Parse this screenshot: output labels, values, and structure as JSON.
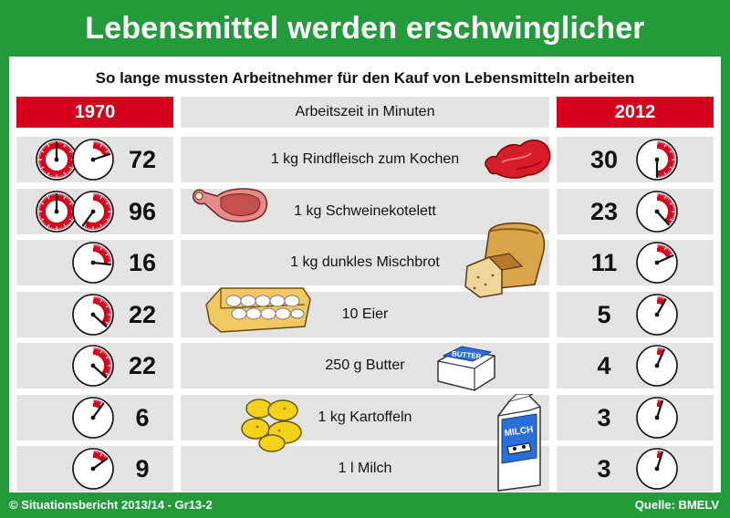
{
  "chart_data": {
    "type": "table",
    "title": "Lebensmittel werden erschwinglicher",
    "subtitle": "So lange mussten Arbeitnehmer für den Kauf von Lebensmitteln arbeiten",
    "columns": [
      "1970",
      "Arbeitszeit in Minuten",
      "2012"
    ],
    "rows": [
      {
        "item": "1 kg Rindfleisch zum Kochen",
        "v1970": 72,
        "v2012": 30,
        "icon": "beef-icon"
      },
      {
        "item": "1 kg Schweinekotelett",
        "v1970": 96,
        "v2012": 23,
        "icon": "pork-chop-icon"
      },
      {
        "item": "1 kg dunkles Mischbrot",
        "v1970": 16,
        "v2012": 11,
        "icon": "bread-icon"
      },
      {
        "item": "10 Eier",
        "v1970": 22,
        "v2012": 5,
        "icon": "egg-carton-icon"
      },
      {
        "item": "250 g Butter",
        "v1970": 22,
        "v2012": 4,
        "icon": "butter-icon"
      },
      {
        "item": "1 kg Kartoffeln",
        "v1970": 6,
        "v2012": 3,
        "icon": "potatoes-icon"
      },
      {
        "item": "1 l Milch",
        "v1970": 9,
        "v2012": 3,
        "icon": "milk-carton-icon"
      }
    ]
  },
  "labels": {
    "butter": "BUTTER",
    "milk": "MILCH"
  },
  "footer": {
    "left": "© Situationsbericht 2013/14 - Gr13-2",
    "right": "Quelle: BMELV"
  },
  "colors": {
    "green": "#239b3b",
    "red": "#d6001c",
    "grey": "#e3e3e3"
  }
}
